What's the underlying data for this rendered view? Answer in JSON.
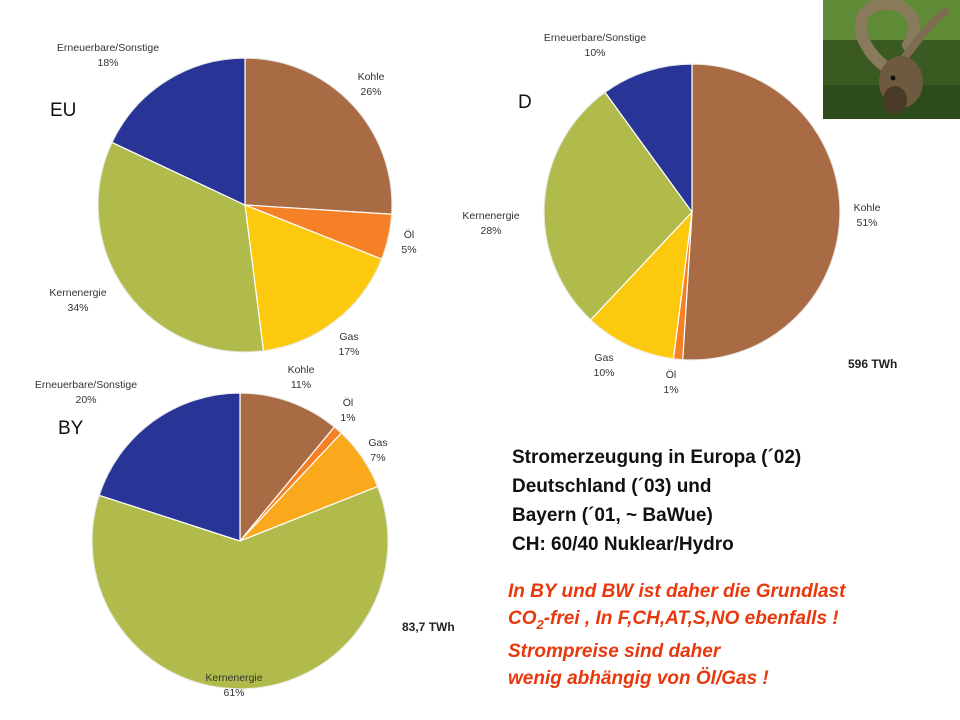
{
  "chart_data": [
    {
      "type": "pie",
      "label": "EU",
      "total": "",
      "slices": [
        {
          "name": "Kohle",
          "value": 26,
          "pct_label": "26%",
          "color": "#a86b43"
        },
        {
          "name": "Öl",
          "value": 5,
          "pct_label": "5%",
          "color": "#f58025"
        },
        {
          "name": "Gas",
          "value": 17,
          "pct_label": "17%",
          "color": "#fcc90e"
        },
        {
          "name": "Kernenergie",
          "value": 34,
          "pct_label": "34%",
          "color": "#b0bb4b"
        },
        {
          "name": "Erneuerbare/Sonstige",
          "value": 18,
          "pct_label": "18%",
          "color": "#283596"
        }
      ]
    },
    {
      "type": "pie",
      "label": "D",
      "total": "596 TWh",
      "slices": [
        {
          "name": "Kohle",
          "value": 51,
          "pct_label": "51%",
          "color": "#a86b43"
        },
        {
          "name": "Öl",
          "value": 1,
          "pct_label": "1%",
          "color": "#f58025"
        },
        {
          "name": "Gas",
          "value": 10,
          "pct_label": "10%",
          "color": "#fcc90e"
        },
        {
          "name": "Kernenergie",
          "value": 28,
          "pct_label": "28%",
          "color": "#b0bb4b"
        },
        {
          "name": "Erneuerbare/Sonstige",
          "value": 10,
          "pct_label": "10%",
          "color": "#283596"
        }
      ]
    },
    {
      "type": "pie",
      "label": "BY",
      "total": "83,7 TWh",
      "slices": [
        {
          "name": "Kohle",
          "value": 11,
          "pct_label": "11%",
          "color": "#a86b43"
        },
        {
          "name": "Öl",
          "value": 1,
          "pct_label": "1%",
          "color": "#f58025"
        },
        {
          "name": "Gas",
          "value": 7,
          "pct_label": "7%",
          "color": "#f9a91b"
        },
        {
          "name": "Kernenergie",
          "value": 61,
          "pct_label": "61%",
          "color": "#b0bb4b"
        },
        {
          "name": "Erneuerbare/Sonstige",
          "value": 20,
          "pct_label": "20%",
          "color": "#283596"
        }
      ]
    }
  ],
  "summary": {
    "line1": "Stromerzeugung in Europa (´02)",
    "line2": "Deutschland (´03) und",
    "line3": "Bayern (´01, ~ BaWue)",
    "line4": "CH: 60/40 Nuklear/Hydro"
  },
  "note": {
    "line1": "In BY und BW ist daher die Grundlast",
    "line2_a": "CO",
    "line2_sub": "2",
    "line2_b": "-frei , In F,CH,AT,S,NO ebenfalls !",
    "line3": "Strompreise sind daher",
    "line4": "wenig abhängig von Öl/Gas !"
  },
  "image": {
    "icon": "ibex-photo"
  }
}
